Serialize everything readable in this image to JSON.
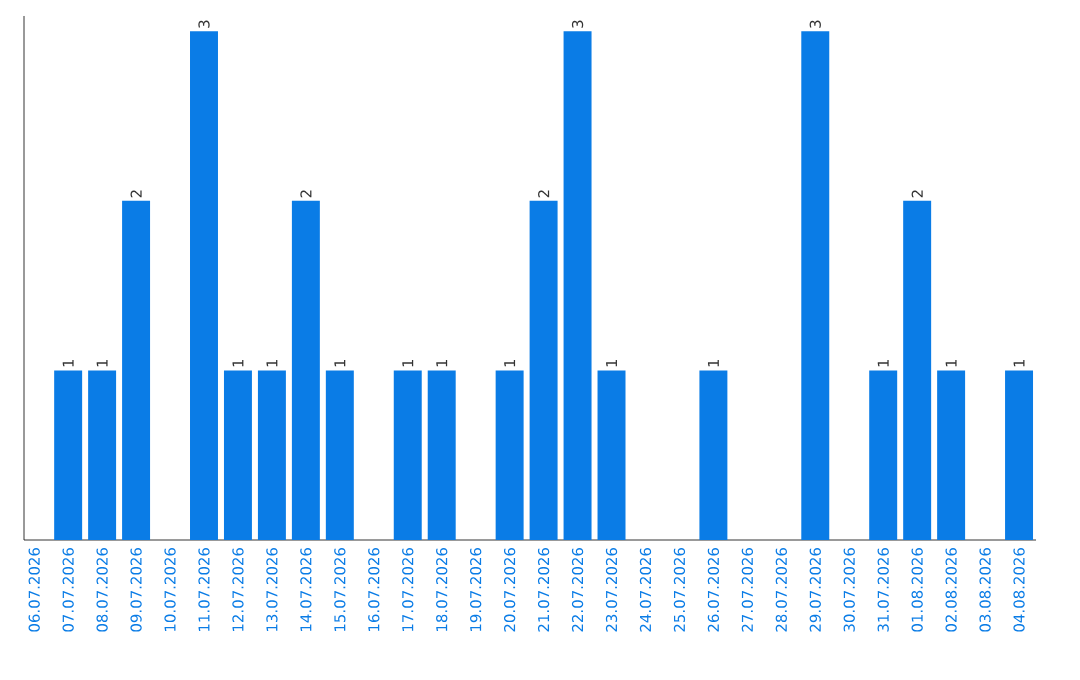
{
  "chart_data": {
    "type": "bar",
    "categories": [
      "06.07.2026",
      "07.07.2026",
      "08.07.2026",
      "09.07.2026",
      "10.07.2026",
      "11.07.2026",
      "12.07.2026",
      "13.07.2026",
      "14.07.2026",
      "15.07.2026",
      "16.07.2026",
      "17.07.2026",
      "18.07.2026",
      "19.07.2026",
      "20.07.2026",
      "21.07.2026",
      "22.07.2026",
      "23.07.2026",
      "24.07.2026",
      "25.07.2026",
      "26.07.2026",
      "27.07.2026",
      "28.07.2026",
      "29.07.2026",
      "30.07.2026",
      "31.07.2026",
      "01.08.2026",
      "02.08.2026",
      "03.08.2026",
      "04.08.2026"
    ],
    "values": [
      0,
      1,
      1,
      2,
      0,
      3,
      1,
      1,
      2,
      1,
      0,
      1,
      1,
      0,
      1,
      2,
      3,
      1,
      0,
      0,
      1,
      0,
      0,
      3,
      0,
      1,
      2,
      1,
      0,
      1
    ],
    "value_labels": [
      null,
      "1",
      "1",
      "2",
      null,
      "3",
      "1",
      "1",
      "2",
      "1",
      null,
      "1",
      "1",
      null,
      "1",
      "2",
      "3",
      "1",
      null,
      null,
      "1",
      null,
      null,
      "3",
      null,
      "1",
      "2",
      "1",
      null,
      "1"
    ],
    "color": "#0a7ce6",
    "ylim": [
      0,
      3
    ],
    "tick_labels": "x",
    "grid": false
  }
}
